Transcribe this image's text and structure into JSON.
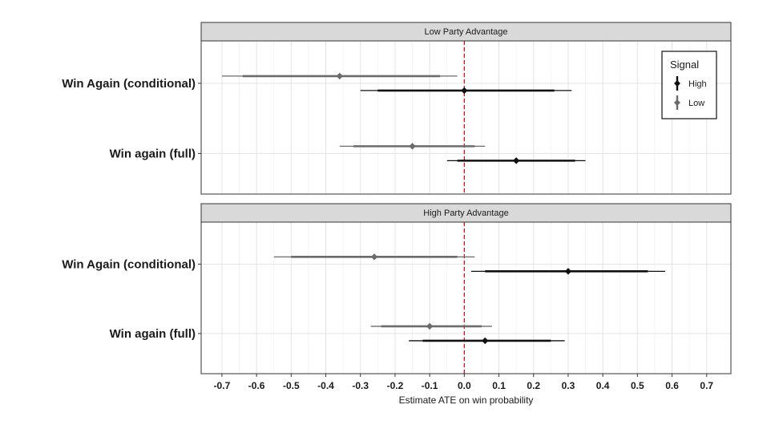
{
  "chart_data": {
    "type": "scatter",
    "subtype": "forest-plot-with-intervals",
    "xlabel": "Estimate ATE on win probability",
    "xlim": [
      -0.76,
      0.77
    ],
    "x_ticks": [
      "-0.7",
      "-0.6",
      "-0.5",
      "-0.4",
      "-0.3",
      "-0.2",
      "-0.1",
      "0.0",
      "0.1",
      "0.2",
      "0.3",
      "0.4",
      "0.5",
      "0.6",
      "0.7"
    ],
    "x_tick_values": [
      -0.7,
      -0.6,
      -0.5,
      -0.4,
      -0.3,
      -0.2,
      -0.1,
      0.0,
      0.1,
      0.2,
      0.3,
      0.4,
      0.5,
      0.6,
      0.7
    ],
    "reference_line": {
      "x": 0.0,
      "style": "dashed",
      "color": "#b22222"
    },
    "grid": true,
    "categories": [
      "Win Again (conditional)",
      "Win again (full)"
    ],
    "legend": {
      "title": "Signal",
      "placement": "top-right (inside first panel)",
      "entries": [
        {
          "name": "High",
          "color": "#111111"
        },
        {
          "name": "Low",
          "color": "#6b6b6b"
        }
      ]
    },
    "facets": [
      {
        "title": "Low Party Advantage",
        "series": [
          {
            "name": "High",
            "color": "#111111",
            "points": [
              {
                "category": "Win Again (conditional)",
                "estimate": 0.0,
                "ci95": [
                  -0.3,
                  0.31
                ],
                "ci90": [
                  -0.25,
                  0.26
                ]
              },
              {
                "category": "Win again (full)",
                "estimate": 0.15,
                "ci95": [
                  -0.05,
                  0.35
                ],
                "ci90": [
                  -0.02,
                  0.32
                ]
              }
            ]
          },
          {
            "name": "Low",
            "color": "#6b6b6b",
            "points": [
              {
                "category": "Win Again (conditional)",
                "estimate": -0.36,
                "ci95": [
                  -0.7,
                  -0.02
                ],
                "ci90": [
                  -0.64,
                  -0.07
                ]
              },
              {
                "category": "Win again (full)",
                "estimate": -0.15,
                "ci95": [
                  -0.36,
                  0.06
                ],
                "ci90": [
                  -0.32,
                  0.03
                ]
              }
            ]
          }
        ]
      },
      {
        "title": "High Party Advantage",
        "series": [
          {
            "name": "High",
            "color": "#111111",
            "points": [
              {
                "category": "Win Again (conditional)",
                "estimate": 0.3,
                "ci95": [
                  0.02,
                  0.58
                ],
                "ci90": [
                  0.06,
                  0.53
                ]
              },
              {
                "category": "Win again (full)",
                "estimate": 0.06,
                "ci95": [
                  -0.16,
                  0.29
                ],
                "ci90": [
                  -0.12,
                  0.25
                ]
              }
            ]
          },
          {
            "name": "Low",
            "color": "#6b6b6b",
            "points": [
              {
                "category": "Win Again (conditional)",
                "estimate": -0.26,
                "ci95": [
                  -0.55,
                  0.03
                ],
                "ci90": [
                  -0.5,
                  -0.02
                ]
              },
              {
                "category": "Win again (full)",
                "estimate": -0.1,
                "ci95": [
                  -0.27,
                  0.08
                ],
                "ci90": [
                  -0.24,
                  0.05
                ]
              }
            ]
          }
        ]
      }
    ]
  }
}
